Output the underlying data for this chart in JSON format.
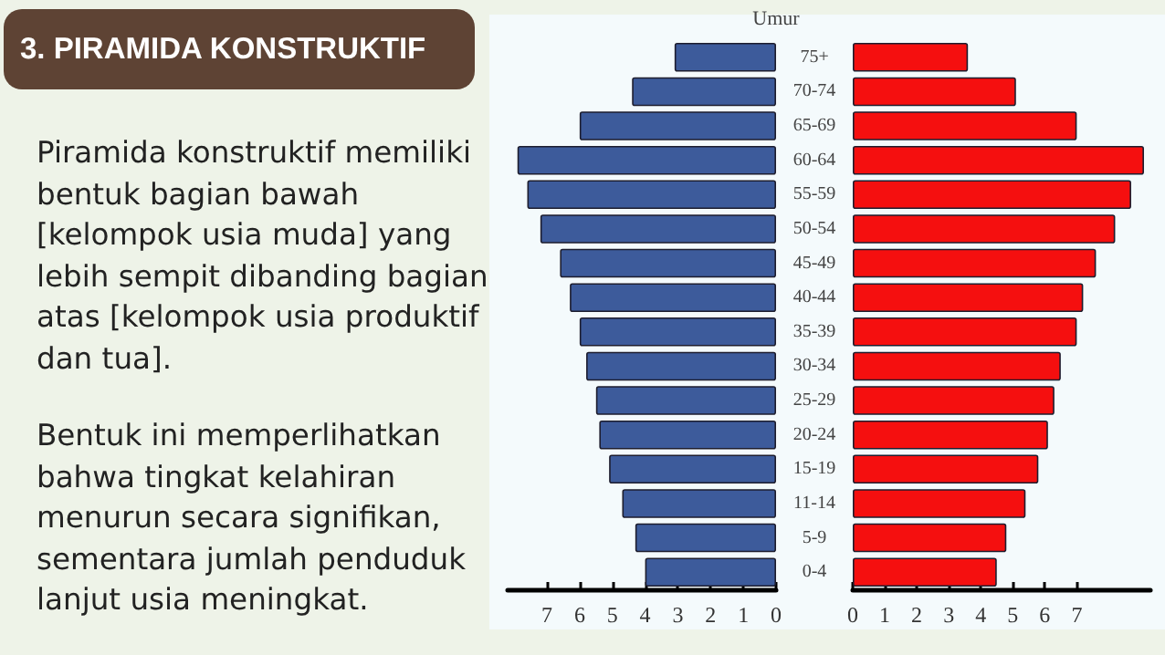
{
  "chart_data": [
    {
      "type": "other",
      "title": "3. PIRAMIDA KONSTRUKTIF",
      "annotations": [
        "Piramida konstruktif memiliki bentuk bagian bawah [kelompok usia muda] yang lebih sempit dibanding bagian atas [kelompok usia produktif dan tua].",
        "Bentuk ini memperlihatkan bahwa tingkat kelahiran menurun secara signifikan, sementara jumlah penduduk lanjut usia meningkat."
      ]
    },
    {
      "type": "bar",
      "orientation": "horizontal",
      "ylabel": "Umur",
      "categories": [
        "75+",
        "70-74",
        "65-69",
        "60-64",
        "55-59",
        "50-54",
        "45-49",
        "40-44",
        "35-39",
        "30-34",
        "25-29",
        "20-24",
        "15-19",
        "11-14",
        "5-9",
        "0-4"
      ],
      "xlim": [
        8.2,
        0
      ],
      "xticks": [
        7,
        6,
        5,
        4,
        3,
        2,
        1,
        0
      ],
      "series": [
        {
          "color": "#3d5b9b",
          "values": [
            3.1,
            4.4,
            6.0,
            7.9,
            7.6,
            7.2,
            6.6,
            6.3,
            6.0,
            5.8,
            5.5,
            5.4,
            5.1,
            4.7,
            4.3,
            4.0
          ]
        }
      ]
    },
    {
      "type": "bar",
      "orientation": "horizontal",
      "tick_labels": "x",
      "categories": [
        null,
        null,
        null,
        null,
        null,
        null,
        null,
        null,
        null,
        null,
        null,
        null,
        null,
        null,
        null,
        null
      ],
      "xlim": [
        0,
        9.3
      ],
      "xticks": [
        0,
        1,
        2,
        3,
        4,
        5,
        6,
        7
      ],
      "series": [
        {
          "color": "#f50f0f",
          "values": [
            3.6,
            5.1,
            7.0,
            9.1,
            8.7,
            8.2,
            7.6,
            7.2,
            7.0,
            6.5,
            6.3,
            6.1,
            5.8,
            5.4,
            4.8,
            4.5
          ]
        }
      ]
    }
  ]
}
